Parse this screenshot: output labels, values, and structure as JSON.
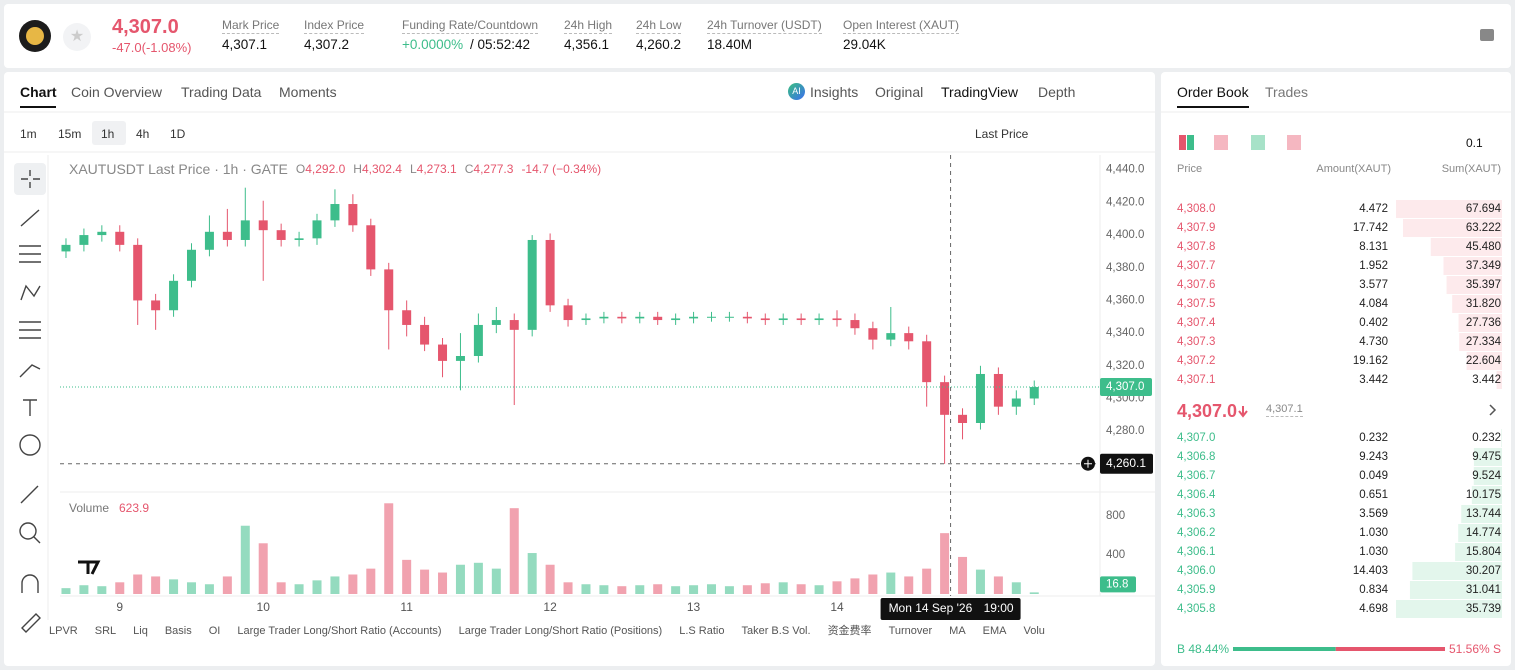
{
  "header": {
    "price": "4,307.0",
    "change": "-47.0(-1.08%)",
    "stats": [
      {
        "label": "Mark Price",
        "value": "4,307.1"
      },
      {
        "label": "Index Price",
        "value": "4,307.2"
      },
      {
        "label": "Funding Rate/Countdown",
        "value": "+0.0000%",
        "countdown": "/ 05:52:42"
      },
      {
        "label": "24h High",
        "value": "4,356.1"
      },
      {
        "label": "24h Low",
        "value": "4,260.2"
      },
      {
        "label": "24h Turnover (USDT)",
        "value": "18.40M"
      },
      {
        "label": "Open Interest (XAUT)",
        "value": "29.04K"
      }
    ]
  },
  "chart_tabs": [
    "Chart",
    "Coin Overview",
    "Trading Data",
    "Moments"
  ],
  "view_tabs": [
    "Insights",
    "Original",
    "TradingView",
    "Depth"
  ],
  "intervals": [
    "1m",
    "15m",
    "1h",
    "4h",
    "1D"
  ],
  "price_source": "Last Price",
  "chart_data": {
    "type": "candlestick",
    "legend": {
      "symbol": "XAUTUSDT Last Price · 1h · GATE",
      "items": [
        {
          "key": "O",
          "value": "4,292.0"
        },
        {
          "key": "H",
          "value": "4,302.4"
        },
        {
          "key": "L",
          "value": "4,273.1"
        },
        {
          "key": "C",
          "value": "4,277.3"
        }
      ],
      "change": "-14.7 (−0.34%)"
    },
    "up_color": "#3dbd8b",
    "down_color": "#e5566d",
    "x": [
      -9,
      -6,
      -3,
      0,
      3,
      6,
      9,
      12,
      15,
      18,
      21,
      24,
      27,
      30,
      33,
      36,
      39,
      42,
      45,
      48,
      51,
      54,
      57,
      60,
      63,
      66,
      69,
      72,
      75,
      78,
      81,
      84,
      87,
      90,
      93,
      96,
      99,
      102,
      105,
      108,
      111,
      114,
      117,
      120,
      123,
      126,
      129,
      132,
      135,
      138,
      141,
      144,
      147,
      150,
      153
    ],
    "open": [
      4390,
      4394,
      4400,
      4402,
      4394,
      4360,
      4354,
      4372,
      4391,
      4402,
      4397,
      4409,
      4403,
      4397,
      4398,
      4409,
      4419,
      4406,
      4379,
      4354,
      4345,
      4333,
      4323,
      4326,
      4345,
      4348,
      4342,
      4397,
      4357,
      4348,
      4349,
      4350,
      4349,
      4350,
      4348,
      4349,
      4350,
      4350,
      4350,
      4349,
      4348,
      4349,
      4348,
      4349,
      4348,
      4343,
      4336,
      4340,
      4335,
      4310,
      4290,
      4285,
      4315,
      4295,
      4300
    ],
    "high": [
      4398,
      4404,
      4406,
      4406,
      4398,
      4364,
      4376,
      4395,
      4412,
      4416,
      4429,
      4421,
      4407,
      4402,
      4413,
      4428,
      4425,
      4410,
      4383,
      4360,
      4350,
      4337,
      4340,
      4352,
      4356,
      4352,
      4400,
      4401,
      4361,
      4352,
      4353,
      4353,
      4353,
      4353,
      4352,
      4353,
      4353,
      4353,
      4353,
      4352,
      4352,
      4352,
      4352,
      4354,
      4352,
      4347,
      4356,
      4344,
      4339,
      4314,
      4294,
      4320,
      4319,
      4305,
      4311
    ],
    "low": [
      4386,
      4390,
      4396,
      4390,
      4345,
      4342,
      4350,
      4368,
      4387,
      4393,
      4393,
      4372,
      4393,
      4393,
      4394,
      4405,
      4402,
      4375,
      4330,
      4338,
      4329,
      4313,
      4305,
      4322,
      4340,
      4296,
      4338,
      4353,
      4344,
      4345,
      4346,
      4346,
      4346,
      4345,
      4345,
      4346,
      4347,
      4347,
      4346,
      4345,
      4345,
      4345,
      4345,
      4344,
      4339,
      4330,
      4332,
      4330,
      4295,
      4260,
      4275,
      4281,
      4290,
      4290,
      4296
    ],
    "close": [
      4394,
      4400,
      4402,
      4394,
      4360,
      4354,
      4372,
      4391,
      4402,
      4397,
      4409,
      4403,
      4397,
      4398,
      4409,
      4419,
      4406,
      4379,
      4354,
      4345,
      4333,
      4323,
      4326,
      4345,
      4348,
      4342,
      4397,
      4357,
      4348,
      4349,
      4350,
      4349,
      4350,
      4348,
      4349,
      4350,
      4350,
      4350,
      4349,
      4348,
      4349,
      4348,
      4349,
      4348,
      4343,
      4336,
      4340,
      4335,
      4310,
      4290,
      4285,
      4315,
      4295,
      4300,
      4307
    ],
    "volume": [
      60,
      90,
      80,
      120,
      200,
      180,
      150,
      120,
      100,
      180,
      700,
      520,
      120,
      100,
      140,
      180,
      200,
      260,
      930,
      350,
      250,
      220,
      300,
      320,
      260,
      880,
      420,
      300,
      120,
      100,
      90,
      80,
      90,
      100,
      80,
      90,
      100,
      80,
      90,
      110,
      120,
      100,
      90,
      130,
      160,
      200,
      220,
      180,
      260,
      623.9,
      380,
      250,
      180,
      120,
      16.8
    ],
    "xlim": [
      -10,
      164
    ],
    "xticks": [
      {
        "value": 0,
        "label": "9"
      },
      {
        "value": 24,
        "label": "10"
      },
      {
        "value": 48,
        "label": "11"
      },
      {
        "value": 72,
        "label": "12"
      },
      {
        "value": 96,
        "label": "13"
      },
      {
        "value": 120,
        "label": "14"
      }
    ],
    "ylim": [
      4244,
      4449
    ],
    "yticks": [
      {
        "value": 4280,
        "label": "4,280.0"
      },
      {
        "value": 4300,
        "label": "4,300.0"
      },
      {
        "value": 4320,
        "label": "4,320.0"
      },
      {
        "value": 4340,
        "label": "4,340.0"
      },
      {
        "value": 4360,
        "label": "4,360.0"
      },
      {
        "value": 4380,
        "label": "4,380.0"
      },
      {
        "value": 4400,
        "label": "4,400.0"
      },
      {
        "value": 4420,
        "label": "4,420.0"
      },
      {
        "value": 4440,
        "label": "4,440.0"
      }
    ],
    "volume_title": "Volume",
    "volume_value": 623.9,
    "volume_ylim": [
      0,
      1015
    ],
    "volume_yticks": [
      400,
      800
    ],
    "last_price": {
      "value": 4307.0,
      "label": "4,307.0"
    },
    "last_volume": 16.8,
    "crosshair": {
      "x": 139,
      "price": {
        "value": 4260.1,
        "label": "4,260.1"
      },
      "time_label": "Mon 14 Sep '26",
      "hour_label": "19:00"
    }
  },
  "indicators": [
    "LPVR",
    "SRL",
    "Liq",
    "Basis",
    "OI",
    "Large Trader Long/Short Ratio (Accounts)",
    "Large Trader Long/Short Ratio (Positions)",
    "L.S Ratio",
    "Taker B.S Vol.",
    "资金费率",
    "Turnover",
    "MA",
    "EMA",
    "Volu"
  ],
  "order_book": {
    "tabs": [
      "Order Book",
      "Trades"
    ],
    "precision": "0.1",
    "headers": [
      "Price",
      "Amount(XAUT)",
      "Sum(XAUT)"
    ],
    "asks": [
      {
        "price": "4,308.0",
        "amount": "4.472",
        "sum": 67.694
      },
      {
        "price": "4,307.9",
        "amount": "17.742",
        "sum": 63.222
      },
      {
        "price": "4,307.8",
        "amount": "8.131",
        "sum": {
          "value": 45.48,
          "label": "45.480"
        }
      },
      {
        "price": "4,307.7",
        "amount": "1.952",
        "sum": 37.349
      },
      {
        "price": "4,307.6",
        "amount": "3.577",
        "sum": 35.397
      },
      {
        "price": "4,307.5",
        "amount": "4.084",
        "sum": {
          "value": 31.82,
          "label": "31.820"
        }
      },
      {
        "price": "4,307.4",
        "amount": "0.402",
        "sum": 27.736
      },
      {
        "price": "4,307.3",
        "amount": "4.730",
        "sum": 27.334
      },
      {
        "price": "4,307.2",
        "amount": "19.162",
        "sum": 22.604
      },
      {
        "price": "4,307.1",
        "amount": "3.442",
        "sum": 3.442
      }
    ],
    "mid": "4,307.0",
    "mark": "4,307.1",
    "bids": [
      {
        "price": "4,307.0",
        "amount": "0.232",
        "sum": 0.232
      },
      {
        "price": "4,306.8",
        "amount": "9.243",
        "sum": 9.475
      },
      {
        "price": "4,306.7",
        "amount": "0.049",
        "sum": 9.524
      },
      {
        "price": "4,306.4",
        "amount": "0.651",
        "sum": 10.175
      },
      {
        "price": "4,306.3",
        "amount": "3.569",
        "sum": 13.744
      },
      {
        "price": "4,306.2",
        "amount": "1.030",
        "sum": 14.774
      },
      {
        "price": "4,306.1",
        "amount": "1.030",
        "sum": 15.804
      },
      {
        "price": "4,306.0",
        "amount": "14.403",
        "sum": 30.207
      },
      {
        "price": "4,305.9",
        "amount": "0.834",
        "sum": 31.041
      },
      {
        "price": "4,305.8",
        "amount": "4.698",
        "sum": 35.739
      }
    ],
    "buy_ratio": {
      "value": 48.44,
      "label": "B 48.44%"
    },
    "sell_ratio": {
      "value": 51.56,
      "label": "51.56% S"
    }
  }
}
